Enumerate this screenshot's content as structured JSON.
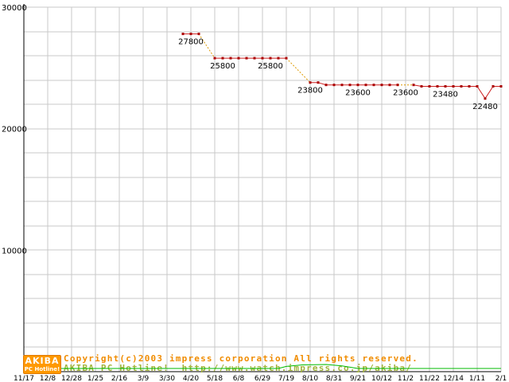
{
  "page": {
    "background": "#ffffff"
  },
  "chart_data": {
    "type": "line",
    "title": "",
    "xlabel": "",
    "ylabel": "",
    "ylim": [
      0,
      30000
    ],
    "y_tick_values": [
      10000,
      20000,
      30000
    ],
    "y_grid_step": 2000,
    "grid": true,
    "x_tick_labels": [
      "11/17",
      "12/8",
      "12/28",
      "1/25",
      "2/16",
      "3/9",
      "3/30",
      "4/20",
      "5/18",
      "6/8",
      "6/29",
      "7/19",
      "8/10",
      "8/31",
      "9/21",
      "10/12",
      "11/2",
      "11/22",
      "12/14",
      "1/11",
      "2/1"
    ],
    "weeks_per_tick": 3,
    "colors": {
      "grid": "#c9c9c9",
      "axis": "#000000",
      "label": "#000000",
      "annotation": "#000000"
    },
    "series": [
      {
        "name": "price",
        "color": "#cc2020",
        "marker": "square",
        "marker_color": "#aa0000",
        "segments": [
          {
            "style": "solid",
            "points": [
              [
                20,
                27800
              ],
              [
                21,
                27800
              ],
              [
                22,
                27800
              ]
            ]
          },
          {
            "style": "dotted",
            "color": "#dd9900",
            "points": [
              [
                22,
                27800
              ],
              [
                24,
                25800
              ]
            ]
          },
          {
            "style": "solid",
            "points": [
              [
                24,
                25800
              ],
              [
                25,
                25800
              ],
              [
                26,
                25800
              ],
              [
                27,
                25800
              ],
              [
                28,
                25800
              ],
              [
                29,
                25800
              ],
              [
                30,
                25800
              ],
              [
                31,
                25800
              ],
              [
                32,
                25800
              ],
              [
                33,
                25800
              ]
            ]
          },
          {
            "style": "dotted",
            "color": "#dd9900",
            "points": [
              [
                33,
                25800
              ],
              [
                36,
                23800
              ]
            ]
          },
          {
            "style": "solid",
            "points": [
              [
                36,
                23800
              ],
              [
                37,
                23800
              ],
              [
                38,
                23600
              ],
              [
                39,
                23600
              ],
              [
                40,
                23600
              ],
              [
                41,
                23600
              ],
              [
                42,
                23600
              ],
              [
                43,
                23600
              ],
              [
                44,
                23600
              ],
              [
                45,
                23600
              ],
              [
                46,
                23600
              ],
              [
                47,
                23600
              ]
            ]
          },
          {
            "style": "dotted",
            "color": "#dd9900",
            "points": [
              [
                47,
                23600
              ],
              [
                49,
                23600
              ]
            ]
          },
          {
            "style": "solid",
            "points": [
              [
                49,
                23600
              ],
              [
                50,
                23480
              ],
              [
                51,
                23480
              ],
              [
                52,
                23480
              ],
              [
                53,
                23480
              ],
              [
                54,
                23480
              ],
              [
                55,
                23480
              ],
              [
                56,
                23480
              ],
              [
                57,
                23480
              ],
              [
                58,
                22480
              ],
              [
                59,
                23480
              ],
              [
                60,
                23480
              ]
            ]
          }
        ]
      },
      {
        "name": "secondary",
        "color": "#00bb00",
        "marker": "none",
        "segments": [
          {
            "style": "solid",
            "points": [
              [
                0,
                260
              ],
              [
                6,
                260
              ],
              [
                12,
                260
              ],
              [
                18,
                260
              ],
              [
                24,
                260
              ],
              [
                30,
                260
              ],
              [
                32,
                260
              ],
              [
                33,
                430
              ],
              [
                35,
                560
              ],
              [
                38,
                590
              ],
              [
                40,
                480
              ],
              [
                42,
                260
              ],
              [
                48,
                260
              ],
              [
                54,
                260
              ],
              [
                60,
                260
              ]
            ]
          }
        ]
      }
    ],
    "annotations": [
      {
        "text": "27800",
        "week": 21,
        "value": 27800
      },
      {
        "text": "25800",
        "week": 25,
        "value": 25800
      },
      {
        "text": "25800",
        "week": 31,
        "value": 25800
      },
      {
        "text": "23800",
        "week": 36,
        "value": 23800
      },
      {
        "text": "23600",
        "week": 42,
        "value": 23600
      },
      {
        "text": "23600",
        "week": 48,
        "value": 23600
      },
      {
        "text": "23480",
        "week": 53,
        "value": 23480
      },
      {
        "text": "22480",
        "week": 58,
        "value": 22480
      }
    ]
  },
  "footer": {
    "logo_line1": "AKIBA",
    "logo_line2": "PC Hotline!",
    "copyright_line1": "Copyright(c)2003 impress corporation All rights reserved.",
    "copyright_line2": "AKIBA PC Hotline!  http://www.watch.impress.co.jp/akiba/",
    "copyright_color1": "#f08c00",
    "copyright_color2": "#a2b43c"
  }
}
